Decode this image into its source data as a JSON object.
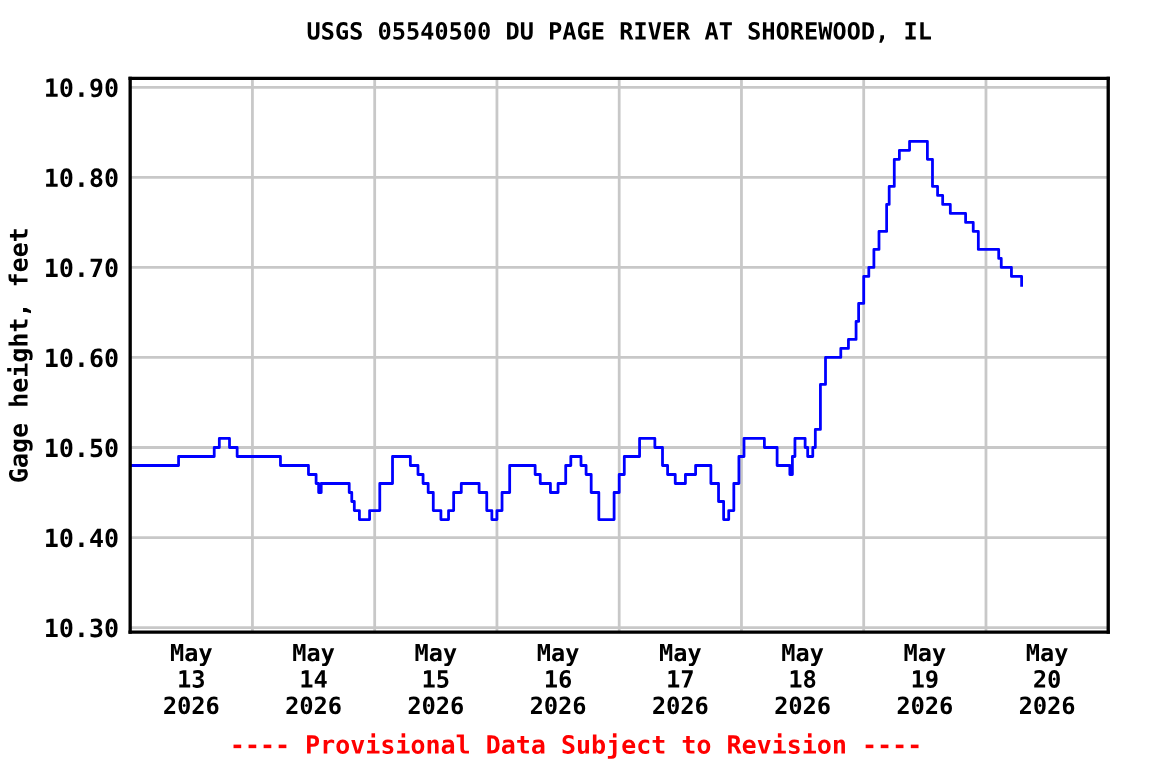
{
  "chart_data": {
    "type": "step",
    "title": "USGS 05540500 DU PAGE RIVER AT SHOREWOOD, IL",
    "ylabel": "Gage height, feet",
    "annotations": [
      "---- Provisional Data Subject to Revision ----"
    ],
    "x": [
      "2026-05-13T00:00",
      "2026-05-13T09:30",
      "2026-05-13T16:30",
      "2026-05-13T17:30",
      "2026-05-13T19:00",
      "2026-05-13T19:30",
      "2026-05-13T21:00",
      "2026-05-14T05:30",
      "2026-05-14T11:00",
      "2026-05-14T12:30",
      "2026-05-14T13:00",
      "2026-05-14T13:30",
      "2026-05-14T18:30",
      "2026-05-14T19:00",
      "2026-05-14T19:30",
      "2026-05-14T20:00",
      "2026-05-14T21:00",
      "2026-05-14T22:30",
      "2026-05-14T23:00",
      "2026-05-15T01:00",
      "2026-05-15T03:30",
      "2026-05-15T06:00",
      "2026-05-15T07:00",
      "2026-05-15T08:30",
      "2026-05-15T09:30",
      "2026-05-15T10:30",
      "2026-05-15T11:30",
      "2026-05-15T13:00",
      "2026-05-15T14:00",
      "2026-05-15T14:30",
      "2026-05-15T15:30",
      "2026-05-15T17:00",
      "2026-05-15T19:30",
      "2026-05-15T20:30",
      "2026-05-15T22:00",
      "2026-05-15T23:00",
      "2026-05-16T00:00",
      "2026-05-16T01:00",
      "2026-05-16T02:30",
      "2026-05-16T07:00",
      "2026-05-16T07:30",
      "2026-05-16T08:30",
      "2026-05-16T10:00",
      "2026-05-16T10:30",
      "2026-05-16T12:00",
      "2026-05-16T13:30",
      "2026-05-16T14:30",
      "2026-05-16T16:00",
      "2026-05-16T16:30",
      "2026-05-16T17:30",
      "2026-05-16T18:30",
      "2026-05-16T20:00",
      "2026-05-16T22:00",
      "2026-05-16T23:00",
      "2026-05-17T00:00",
      "2026-05-17T01:00",
      "2026-05-17T03:00",
      "2026-05-17T04:00",
      "2026-05-17T06:30",
      "2026-05-17T07:00",
      "2026-05-17T08:30",
      "2026-05-17T09:30",
      "2026-05-17T11:00",
      "2026-05-17T12:30",
      "2026-05-17T13:00",
      "2026-05-17T15:00",
      "2026-05-17T17:30",
      "2026-05-17T18:00",
      "2026-05-17T19:30",
      "2026-05-17T20:30",
      "2026-05-17T21:30",
      "2026-05-17T22:30",
      "2026-05-17T23:30",
      "2026-05-18T00:30",
      "2026-05-18T04:00",
      "2026-05-18T04:30",
      "2026-05-18T06:00",
      "2026-05-18T07:00",
      "2026-05-18T08:30",
      "2026-05-18T09:30",
      "2026-05-18T10:00",
      "2026-05-18T10:30",
      "2026-05-18T12:00",
      "2026-05-18T12:30",
      "2026-05-18T13:00",
      "2026-05-18T14:00",
      "2026-05-18T14:30",
      "2026-05-18T15:30",
      "2026-05-18T16:30",
      "2026-05-18T19:00",
      "2026-05-18T19:30",
      "2026-05-18T21:00",
      "2026-05-18T22:30",
      "2026-05-18T23:00",
      "2026-05-19T00:00",
      "2026-05-19T01:00",
      "2026-05-19T02:00",
      "2026-05-19T03:00",
      "2026-05-19T04:30",
      "2026-05-19T05:00",
      "2026-05-19T06:00",
      "2026-05-19T07:00",
      "2026-05-19T09:00",
      "2026-05-19T11:30",
      "2026-05-19T12:30",
      "2026-05-19T13:30",
      "2026-05-19T14:30",
      "2026-05-19T15:30",
      "2026-05-19T16:30",
      "2026-05-19T17:00",
      "2026-05-19T19:30",
      "2026-05-19T20:00",
      "2026-05-19T21:30",
      "2026-05-19T22:30",
      "2026-05-20T01:30",
      "2026-05-20T02:30",
      "2026-05-20T03:00",
      "2026-05-20T04:00",
      "2026-05-20T05:00",
      "2026-05-20T06:30",
      "2026-05-20T07:00"
    ],
    "series": [
      {
        "color": "#0000ff",
        "values": [
          10.48,
          10.49,
          10.5,
          10.51,
          10.51,
          10.5,
          10.49,
          10.48,
          10.47,
          10.46,
          10.45,
          10.46,
          10.46,
          10.45,
          10.44,
          10.43,
          10.42,
          10.42,
          10.43,
          10.46,
          10.49,
          10.49,
          10.48,
          10.47,
          10.46,
          10.45,
          10.43,
          10.42,
          10.42,
          10.43,
          10.45,
          10.46,
          10.46,
          10.45,
          10.43,
          10.42,
          10.43,
          10.45,
          10.48,
          10.48,
          10.47,
          10.46,
          10.46,
          10.45,
          10.46,
          10.48,
          10.49,
          10.49,
          10.48,
          10.47,
          10.45,
          10.42,
          10.42,
          10.45,
          10.47,
          10.49,
          10.49,
          10.51,
          10.51,
          10.5,
          10.48,
          10.47,
          10.46,
          10.46,
          10.47,
          10.48,
          10.48,
          10.46,
          10.44,
          10.42,
          10.43,
          10.46,
          10.49,
          10.51,
          10.51,
          10.5,
          10.5,
          10.48,
          10.48,
          10.47,
          10.49,
          10.51,
          10.51,
          10.5,
          10.49,
          10.5,
          10.52,
          10.57,
          10.6,
          10.6,
          10.61,
          10.62,
          10.64,
          10.66,
          10.69,
          10.7,
          10.72,
          10.74,
          10.77,
          10.79,
          10.82,
          10.83,
          10.84,
          10.84,
          10.82,
          10.79,
          10.78,
          10.77,
          10.77,
          10.76,
          10.76,
          10.75,
          10.74,
          10.72,
          10.72,
          10.71,
          10.7,
          10.7,
          10.69,
          10.69,
          10.68
        ]
      }
    ],
    "xlim": [
      "2026-05-13T00:00",
      "2026-05-21T00:00"
    ],
    "xticks": [
      {
        "value": "2026-05-13T12:00",
        "label": "May\n13\n2026"
      },
      {
        "value": "2026-05-14T00:00",
        "label": null
      },
      {
        "value": "2026-05-14T12:00",
        "label": "May\n14\n2026"
      },
      {
        "value": "2026-05-15T00:00",
        "label": null
      },
      {
        "value": "2026-05-15T12:00",
        "label": "May\n15\n2026"
      },
      {
        "value": "2026-05-16T00:00",
        "label": null
      },
      {
        "value": "2026-05-16T12:00",
        "label": "May\n16\n2026"
      },
      {
        "value": "2026-05-17T00:00",
        "label": null
      },
      {
        "value": "2026-05-17T12:00",
        "label": "May\n17\n2026"
      },
      {
        "value": "2026-05-18T00:00",
        "label": null
      },
      {
        "value": "2026-05-18T12:00",
        "label": "May\n18\n2026"
      },
      {
        "value": "2026-05-19T00:00",
        "label": null
      },
      {
        "value": "2026-05-19T12:00",
        "label": "May\n19\n2026"
      },
      {
        "value": "2026-05-20T00:00",
        "label": null
      },
      {
        "value": "2026-05-20T12:00",
        "label": "May\n20\n2026"
      }
    ],
    "ylim": [
      10.295,
      10.91
    ],
    "yticks": [
      {
        "value": 10.3,
        "label": "10.30"
      },
      {
        "value": 10.4,
        "label": "10.40"
      },
      {
        "value": 10.5,
        "label": "10.50"
      },
      {
        "value": 10.6,
        "label": "10.60"
      },
      {
        "value": 10.7,
        "label": "10.70"
      },
      {
        "value": 10.8,
        "label": "10.80"
      },
      {
        "value": 10.9,
        "label": "10.90"
      }
    ],
    "grid": true,
    "line_style": "solid"
  }
}
